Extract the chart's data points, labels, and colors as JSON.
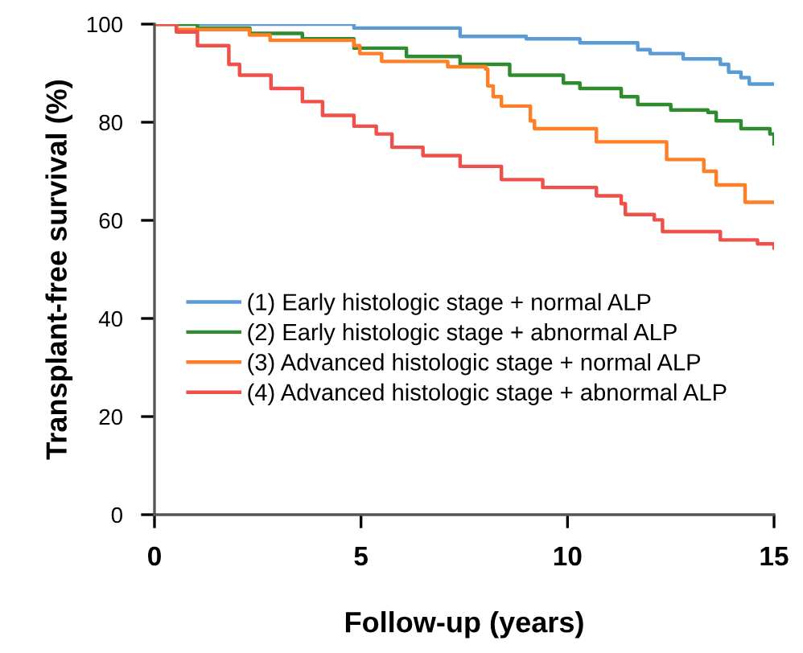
{
  "chart_data": {
    "type": "step",
    "xlabel": "Follow-up (years)",
    "ylabel": "Transplant-free survival (%)",
    "xlim": [
      0,
      15
    ],
    "ylim": [
      0,
      100
    ],
    "xticks": [
      0,
      5,
      10,
      15
    ],
    "yticks": [
      0,
      20,
      40,
      60,
      80,
      100
    ],
    "grid": false,
    "legend": "left",
    "marker": "none",
    "line_style": "solid",
    "series": [
      {
        "name": "(1) Early histologic stage + normal ALP",
        "color": "#5b9bd5",
        "x": [
          0,
          4.83,
          7.4,
          9.0,
          10.3,
          11.7,
          12.0,
          12.8,
          13.7,
          13.9,
          14.2,
          14.4,
          15
        ],
        "values": [
          100,
          99.2,
          97.5,
          97.0,
          96.2,
          94.8,
          94.0,
          92.9,
          91.8,
          90.2,
          89.1,
          87.8,
          87.8
        ]
      },
      {
        "name": "(2) Early histologic stage + abnormal ALP",
        "color": "#2e8b2e",
        "x": [
          0,
          1.04,
          2.31,
          3.58,
          4.83,
          6.1,
          7.4,
          8.6,
          9.9,
          10.3,
          11.3,
          11.7,
          12.5,
          13.4,
          13.6,
          14.2,
          14.9,
          15
        ],
        "values": [
          100,
          99.2,
          98.1,
          97.0,
          95.1,
          93.4,
          91.8,
          89.6,
          88.0,
          86.9,
          85.2,
          83.6,
          82.5,
          82.0,
          80.3,
          78.7,
          77.6,
          75.6
        ]
      },
      {
        "name": "(3) Advanced histologic stage + normal ALP",
        "color": "#ff7f27",
        "x": [
          0,
          0.53,
          2.3,
          2.8,
          4.83,
          4.97,
          5.5,
          7.1,
          8.02,
          8.07,
          8.2,
          8.4,
          9.1,
          9.2,
          10.7,
          12.4,
          13.3,
          13.6,
          14.3,
          15
        ],
        "values": [
          100,
          98.9,
          97.8,
          96.7,
          95.6,
          94.0,
          92.4,
          91.3,
          90.8,
          87.4,
          85.2,
          83.3,
          80.3,
          78.7,
          76.0,
          72.4,
          70.0,
          67.2,
          63.7,
          63.7
        ]
      },
      {
        "name": "(4) Advanced histologic stage + abnormal ALP",
        "color": "#f0504a",
        "x": [
          0,
          0.53,
          1.04,
          1.8,
          2.06,
          2.82,
          3.58,
          4.07,
          4.83,
          5.37,
          5.75,
          6.5,
          7.4,
          8.4,
          9.4,
          10.7,
          11.3,
          11.4,
          12.1,
          12.3,
          13.7,
          14.6,
          15
        ],
        "values": [
          100,
          98.4,
          95.6,
          91.8,
          89.6,
          86.9,
          84.2,
          81.4,
          79.2,
          77.6,
          74.9,
          73.2,
          71.0,
          68.3,
          66.7,
          65.0,
          63.4,
          61.2,
          60.1,
          57.7,
          56.0,
          55.2,
          54.4
        ]
      }
    ]
  }
}
